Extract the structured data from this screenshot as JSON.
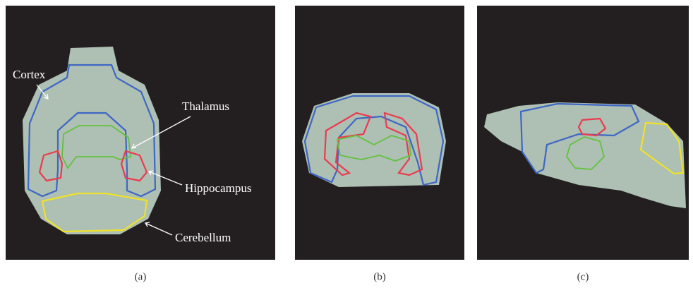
{
  "panels": [
    {
      "caption": "(a)",
      "labels": [
        "Cortex",
        "Thalamus",
        "Hippocampus",
        "Cerebellum"
      ]
    },
    {
      "caption": "(b)"
    },
    {
      "caption": "(c)"
    }
  ]
}
